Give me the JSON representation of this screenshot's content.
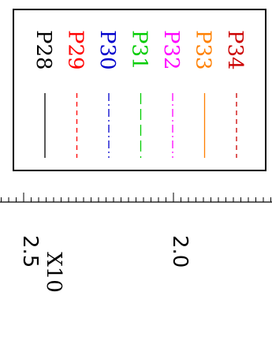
{
  "chart_data": {
    "type": "line",
    "title": "",
    "xlabel": "",
    "ylabel": "",
    "orientation": "rotated-90",
    "legend_placement": "top-right",
    "axis_multiplier": "X10",
    "axis_tick_labels": [
      "2.5",
      "2.0"
    ],
    "series": [
      {
        "name": "P28",
        "color": "#000000",
        "linestyle": "solid"
      },
      {
        "name": "P29",
        "color": "#ff0000",
        "linestyle": "dashed"
      },
      {
        "name": "P30",
        "color": "#0000cc",
        "linestyle": "dashdot"
      },
      {
        "name": "P31",
        "color": "#00cc00",
        "linestyle": "longdash"
      },
      {
        "name": "P32",
        "color": "#ff00ff",
        "linestyle": "dashdot"
      },
      {
        "name": "P33",
        "color": "#ff8000",
        "linestyle": "solid"
      },
      {
        "name": "P34",
        "color": "#cc0000",
        "linestyle": "dashed"
      }
    ]
  }
}
